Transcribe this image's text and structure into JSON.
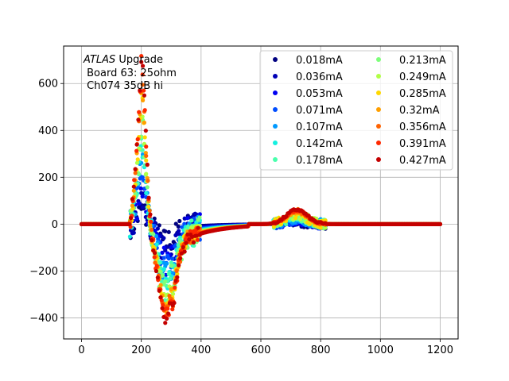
{
  "chart_data": {
    "type": "scatter",
    "title": "",
    "xlabel": "",
    "ylabel": "",
    "xlim": [
      -60,
      1260
    ],
    "ylim": [
      -490,
      760
    ],
    "xticks": [
      0,
      200,
      400,
      600,
      800,
      1000,
      1200
    ],
    "yticks": [
      -400,
      -200,
      0,
      200,
      400,
      600
    ],
    "grid": true,
    "legend_position": "top-right",
    "legend_columns": 2,
    "annotation": {
      "italic": "ATLAS",
      "line1_rest": " Upgrade",
      "line2": " Board 63: 25ohm",
      "line3": " Ch074 35dB hi"
    },
    "series": [
      {
        "name": "0.018mA",
        "color": "#000080",
        "peak": 60,
        "trough": -80
      },
      {
        "name": "0.036mA",
        "color": "#0000b6",
        "peak": 110,
        "trough": -120
      },
      {
        "name": "0.053mA",
        "color": "#0000f1",
        "peak": 160,
        "trough": -160
      },
      {
        "name": "0.071mA",
        "color": "#004dff",
        "peak": 220,
        "trough": -195
      },
      {
        "name": "0.107mA",
        "color": "#0099ff",
        "peak": 270,
        "trough": -225
      },
      {
        "name": "0.142mA",
        "color": "#15f0e0",
        "peak": 320,
        "trough": -255
      },
      {
        "name": "0.178mA",
        "color": "#49ffad",
        "peak": 380,
        "trough": -280
      },
      {
        "name": "0.213mA",
        "color": "#7dff7a",
        "peak": 430,
        "trough": -300
      },
      {
        "name": "0.249mA",
        "color": "#b1ff46",
        "peak": 480,
        "trough": -320
      },
      {
        "name": "0.285mA",
        "color": "#ffd800",
        "peak": 540,
        "trough": -340
      },
      {
        "name": "0.32mA",
        "color": "#ff9f00",
        "peak": 590,
        "trough": -355
      },
      {
        "name": "0.356mA",
        "color": "#ff6300",
        "peak": 640,
        "trough": -370
      },
      {
        "name": "0.391mA",
        "color": "#ff2900",
        "peak": 690,
        "trough": -385
      },
      {
        "name": "0.427mA",
        "color": "#c40000",
        "peak": 720,
        "trough": -400
      }
    ]
  }
}
